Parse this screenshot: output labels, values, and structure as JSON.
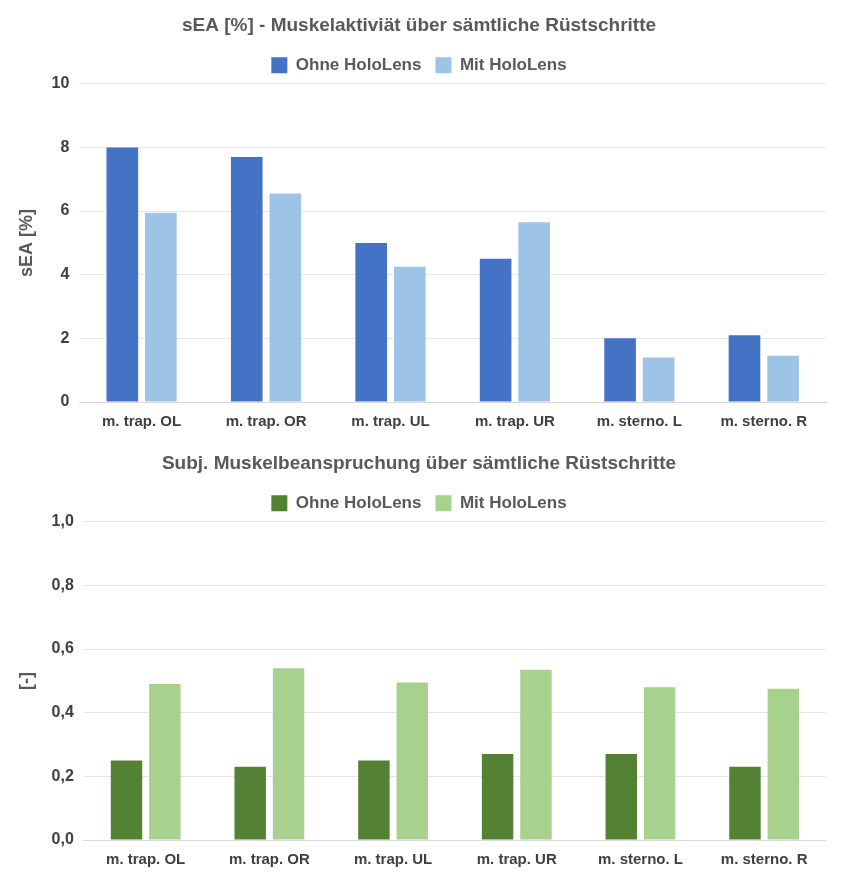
{
  "chart_data": [
    {
      "type": "bar",
      "title": "sEA [%] - Muskelaktiviät über sämtliche Rüstschritte",
      "y_label": "sEA [%]",
      "categories": [
        "m. trap. OL",
        "m. trap. OR",
        "m. trap. UL",
        "m. trap. UR",
        "m. sterno. L",
        "m. sterno. R"
      ],
      "series": [
        {
          "name": "Ohne HoloLens",
          "color": "#4472c4",
          "values": [
            8.0,
            7.7,
            5.0,
            4.5,
            2.0,
            2.1
          ]
        },
        {
          "name": "Mit HoloLens",
          "color": "#9dc3e6",
          "values": [
            5.95,
            6.55,
            4.25,
            5.65,
            1.4,
            1.45
          ]
        }
      ],
      "ylim": [
        0,
        10
      ],
      "yticks": [
        0,
        2,
        4,
        6,
        8,
        10
      ],
      "grid": true,
      "legend": "top"
    },
    {
      "type": "bar",
      "title": "Subj. Muskelbeanspruchung über sämtliche Rüstschritte",
      "y_label": "[-]",
      "categories": [
        "m. trap. OL",
        "m. trap. OR",
        "m. trap. UL",
        "m. trap. UR",
        "m. sterno. L",
        "m. sterno. R"
      ],
      "series": [
        {
          "name": "Ohne HoloLens",
          "color": "#548235",
          "values": [
            0.25,
            0.23,
            0.25,
            0.27,
            0.27,
            0.23
          ]
        },
        {
          "name": "Mit HoloLens",
          "color": "#a9d18e",
          "values": [
            0.49,
            0.54,
            0.495,
            0.535,
            0.48,
            0.475
          ]
        }
      ],
      "ylim": [
        0,
        1
      ],
      "yticks": [
        {
          "value": 0,
          "label": "0,0"
        },
        {
          "value": 0.2,
          "label": "0,2"
        },
        {
          "value": 0.4,
          "label": "0,4"
        },
        {
          "value": 0.6,
          "label": "0,6"
        },
        {
          "value": 0.8,
          "label": "0,8"
        },
        {
          "value": 1,
          "label": "1,0"
        }
      ],
      "grid": true,
      "legend": "top"
    }
  ]
}
